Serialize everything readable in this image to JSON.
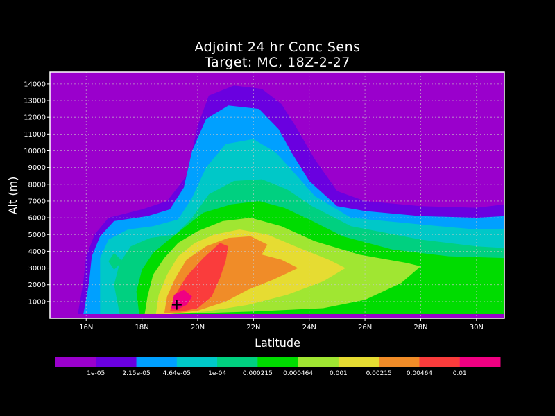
{
  "chart_data": {
    "type": "contour",
    "title": "Adjoint 24 hr Conc Sens",
    "subtitle": "Target: MC, 18Z-2-27",
    "xlabel": "Latitude",
    "ylabel": "Alt (m)",
    "xlim": [
      14.7,
      31.0
    ],
    "ylim": [
      0,
      14700
    ],
    "x_ticks": [
      {
        "value": 16,
        "label": "16N"
      },
      {
        "value": 18,
        "label": "18N"
      },
      {
        "value": 20,
        "label": "20N"
      },
      {
        "value": 22,
        "label": "22N"
      },
      {
        "value": 24,
        "label": "24N"
      },
      {
        "value": 26,
        "label": "26N"
      },
      {
        "value": 28,
        "label": "28N"
      },
      {
        "value": 30,
        "label": "30N"
      }
    ],
    "y_ticks": [
      {
        "value": 1000,
        "label": "1000"
      },
      {
        "value": 2000,
        "label": "2000"
      },
      {
        "value": 3000,
        "label": "3000"
      },
      {
        "value": 4000,
        "label": "4000"
      },
      {
        "value": 5000,
        "label": "5000"
      },
      {
        "value": 6000,
        "label": "6000"
      },
      {
        "value": 7000,
        "label": "7000"
      },
      {
        "value": 8000,
        "label": "8000"
      },
      {
        "value": 9000,
        "label": "9000"
      },
      {
        "value": 10000,
        "label": "10000"
      },
      {
        "value": 11000,
        "label": "11000"
      },
      {
        "value": 12000,
        "label": "12000"
      },
      {
        "value": 13000,
        "label": "13000"
      },
      {
        "value": 14000,
        "label": "14000"
      }
    ],
    "grid": true,
    "colorbar": {
      "placement": "bottom",
      "colors": [
        "#9a00cc",
        "#6a00e0",
        "#00a0ff",
        "#00c8c8",
        "#00d080",
        "#00dc00",
        "#a0e632",
        "#e6dc32",
        "#f08c28",
        "#fa3c3c",
        "#f00082"
      ],
      "labels": [
        "1e-05",
        "2.15e-05",
        "4.64e-05",
        "1e-04",
        "0.000215",
        "0.000464",
        "0.001",
        "0.00215",
        "0.00464",
        "0.01"
      ]
    },
    "background_color": "#9a00cc",
    "contour_levels": [
      {
        "color": "#6a00e0",
        "points": [
          [
            15.7,
            250
          ],
          [
            15.9,
            2200
          ],
          [
            16.0,
            3700
          ],
          [
            16.3,
            5000
          ],
          [
            16.8,
            6000
          ],
          [
            18.0,
            6500
          ],
          [
            18.9,
            7000
          ],
          [
            19.6,
            8500
          ],
          [
            20.0,
            11500
          ],
          [
            20.4,
            13300
          ],
          [
            21.3,
            13900
          ],
          [
            22.3,
            13700
          ],
          [
            23.0,
            12800
          ],
          [
            23.5,
            11500
          ],
          [
            24.2,
            9500
          ],
          [
            25.0,
            7600
          ],
          [
            26.0,
            7000
          ],
          [
            28.0,
            6700
          ],
          [
            30.0,
            6600
          ],
          [
            31.0,
            6800
          ],
          [
            31.0,
            250
          ]
        ]
      },
      {
        "color": "#00a0ff",
        "points": [
          [
            15.9,
            250
          ],
          [
            16.1,
            2100
          ],
          [
            16.2,
            3700
          ],
          [
            16.5,
            4900
          ],
          [
            17.0,
            5800
          ],
          [
            18.2,
            6100
          ],
          [
            19.0,
            6500
          ],
          [
            19.5,
            7800
          ],
          [
            19.8,
            10000
          ],
          [
            20.3,
            11900
          ],
          [
            21.1,
            12700
          ],
          [
            22.2,
            12500
          ],
          [
            22.9,
            11300
          ],
          [
            23.4,
            9800
          ],
          [
            24.0,
            8200
          ],
          [
            25.0,
            6700
          ],
          [
            26.0,
            6400
          ],
          [
            28.0,
            6100
          ],
          [
            30.0,
            6000
          ],
          [
            31.0,
            6100
          ],
          [
            31.0,
            250
          ]
        ]
      },
      {
        "color": "#00c8c8",
        "points": [
          [
            16.5,
            250
          ],
          [
            16.5,
            1900
          ],
          [
            16.5,
            3600
          ],
          [
            16.8,
            4700
          ],
          [
            17.5,
            5300
          ],
          [
            18.4,
            5500
          ],
          [
            19.3,
            5900
          ],
          [
            19.8,
            7200
          ],
          [
            20.3,
            9000
          ],
          [
            21.0,
            10400
          ],
          [
            22.0,
            10700
          ],
          [
            22.8,
            9900
          ],
          [
            23.4,
            8800
          ],
          [
            24.2,
            7300
          ],
          [
            25.5,
            6000
          ],
          [
            28.0,
            5600
          ],
          [
            30.0,
            5300
          ],
          [
            31.0,
            5300
          ],
          [
            31.0,
            250
          ]
        ]
      },
      {
        "color": "#00d080",
        "points": [
          [
            17.2,
            250
          ],
          [
            17.0,
            2000
          ],
          [
            17.2,
            3300
          ],
          [
            17.6,
            4300
          ],
          [
            18.3,
            4800
          ],
          [
            19.2,
            5000
          ],
          [
            19.8,
            6000
          ],
          [
            20.4,
            7400
          ],
          [
            21.3,
            8200
          ],
          [
            22.3,
            8300
          ],
          [
            23.2,
            7700
          ],
          [
            24.1,
            6700
          ],
          [
            25.5,
            5500
          ],
          [
            28.0,
            4700
          ],
          [
            30.0,
            4300
          ],
          [
            31.0,
            4200
          ],
          [
            31.0,
            250
          ]
        ]
      },
      {
        "color": "#00dc00",
        "points": [
          [
            17.9,
            250
          ],
          [
            17.8,
            1600
          ],
          [
            18.0,
            2900
          ],
          [
            18.4,
            3900
          ],
          [
            18.9,
            4600
          ],
          [
            19.5,
            5400
          ],
          [
            20.2,
            6300
          ],
          [
            21.2,
            6800
          ],
          [
            22.2,
            7000
          ],
          [
            23.1,
            6600
          ],
          [
            24.0,
            5900
          ],
          [
            25.2,
            4900
          ],
          [
            27.0,
            4100
          ],
          [
            29.0,
            3700
          ],
          [
            31.0,
            3600
          ],
          [
            31.0,
            250
          ]
        ]
      },
      {
        "color": "#a0e632",
        "points": [
          [
            18.1,
            250
          ],
          [
            18.2,
            1300
          ],
          [
            18.4,
            2600
          ],
          [
            18.8,
            3600
          ],
          [
            19.3,
            4500
          ],
          [
            20.0,
            5200
          ],
          [
            20.9,
            5800
          ],
          [
            21.9,
            6000
          ],
          [
            23.0,
            5500
          ],
          [
            24.2,
            4600
          ],
          [
            25.8,
            3800
          ],
          [
            27.5,
            3300
          ],
          [
            28.0,
            3100
          ],
          [
            27.3,
            2100
          ],
          [
            26.0,
            1100
          ],
          [
            24.5,
            600
          ],
          [
            22.0,
            400
          ],
          [
            20.0,
            300
          ],
          [
            18.8,
            250
          ]
        ]
      },
      {
        "color": "#e6dc32",
        "points": [
          [
            18.5,
            250
          ],
          [
            18.6,
            1400
          ],
          [
            18.9,
            2600
          ],
          [
            19.3,
            3700
          ],
          [
            19.9,
            4500
          ],
          [
            20.6,
            5000
          ],
          [
            21.5,
            5300
          ],
          [
            22.5,
            5000
          ],
          [
            23.5,
            4300
          ],
          [
            24.7,
            3500
          ],
          [
            25.3,
            3000
          ],
          [
            24.5,
            2200
          ],
          [
            23.2,
            1400
          ],
          [
            21.8,
            800
          ],
          [
            20.3,
            400
          ],
          [
            19.0,
            250
          ]
        ]
      },
      {
        "color": "#f08c28",
        "points": [
          [
            18.8,
            300
          ],
          [
            18.9,
            1300
          ],
          [
            19.2,
            2400
          ],
          [
            19.6,
            3500
          ],
          [
            20.3,
            4300
          ],
          [
            21.1,
            4800
          ],
          [
            21.9,
            4900
          ],
          [
            22.5,
            4400
          ],
          [
            22.3,
            3800
          ],
          [
            23.0,
            3500
          ],
          [
            23.6,
            3000
          ],
          [
            22.7,
            2300
          ],
          [
            21.8,
            1700
          ],
          [
            21.0,
            1000
          ],
          [
            20.0,
            450
          ],
          [
            19.2,
            300
          ]
        ]
      },
      {
        "color": "#fa3c3c",
        "points": [
          [
            19.0,
            400
          ],
          [
            19.2,
            1400
          ],
          [
            19.6,
            2500
          ],
          [
            20.2,
            3600
          ],
          [
            20.8,
            4500
          ],
          [
            21.1,
            4300
          ],
          [
            21.0,
            3400
          ],
          [
            20.8,
            2400
          ],
          [
            20.5,
            1300
          ],
          [
            20.0,
            600
          ],
          [
            19.4,
            400
          ]
        ]
      },
      {
        "color": "#f00082",
        "points": [
          [
            19.05,
            600
          ],
          [
            19.15,
            1400
          ],
          [
            19.5,
            1700
          ],
          [
            19.8,
            1300
          ],
          [
            19.6,
            800
          ],
          [
            19.3,
            550
          ]
        ]
      }
    ],
    "contour_islands": [
      {
        "color": "#00d080",
        "points": [
          [
            16.8,
            3400
          ],
          [
            17.0,
            3900
          ],
          [
            17.3,
            3400
          ],
          [
            17.0,
            2900
          ]
        ]
      }
    ],
    "marker": {
      "x": 19.25,
      "y": 800,
      "symbol": "+"
    }
  }
}
